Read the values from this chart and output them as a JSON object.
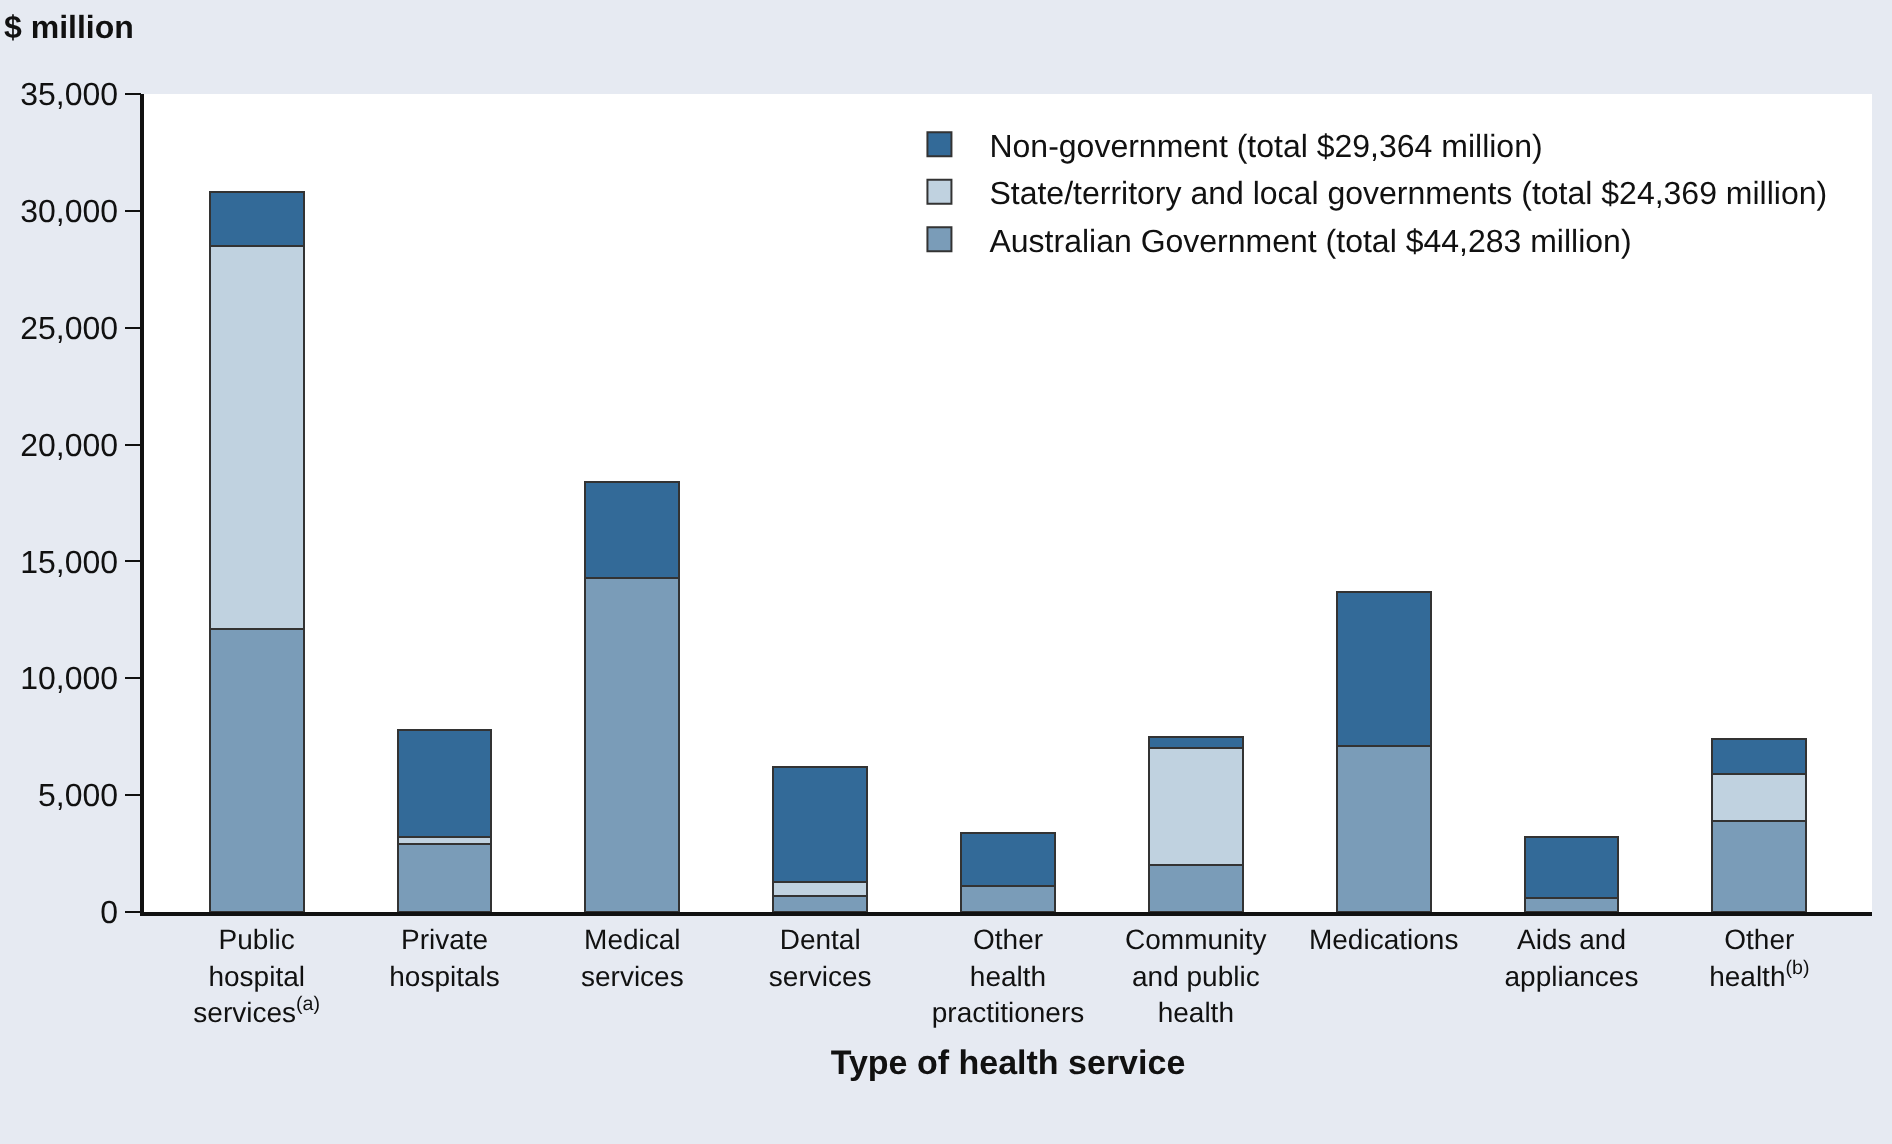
{
  "chart_data": {
    "type": "bar",
    "stacked": true,
    "ylabel": "$ million",
    "xlabel": "Type of health service",
    "categories": [
      "Public hospital services$^{(a)}$",
      "Private hospitals",
      "Medical services",
      "Dental services",
      "Other health practitioners",
      "Community and public health",
      "Medications",
      "Aids and appliances",
      "Other health$^{(b)}$"
    ],
    "series": [
      {
        "name": "Australian Government (total $44,283 million)",
        "color": "#7a9cb8",
        "values": [
          12100,
          2900,
          14300,
          700,
          1100,
          2000,
          7100,
          600,
          3900
        ]
      },
      {
        "name": "State/territory and local governments (total $24,369 million)",
        "color": "#c0d2e0",
        "values": [
          16400,
          300,
          0,
          600,
          0,
          5000,
          0,
          0,
          2000
        ]
      },
      {
        "name": "Non-government (total $29,364 million)",
        "color": "#336a98",
        "values": [
          2300,
          4600,
          4100,
          4900,
          2300,
          500,
          6600,
          2600,
          1500
        ]
      }
    ],
    "ylim": [
      0,
      35000
    ],
    "yticks": [
      {
        "value": 0,
        "label": "0"
      },
      {
        "value": 5000,
        "label": "5,000"
      },
      {
        "value": 10000,
        "label": "10,000"
      },
      {
        "value": 15000,
        "label": "15,000"
      },
      {
        "value": 20000,
        "label": "20,000"
      },
      {
        "value": 25000,
        "label": "25,000"
      },
      {
        "value": 30000,
        "label": "30,000"
      },
      {
        "value": 35000,
        "label": "35,000"
      }
    ],
    "grid": false,
    "legend": "top right"
  }
}
